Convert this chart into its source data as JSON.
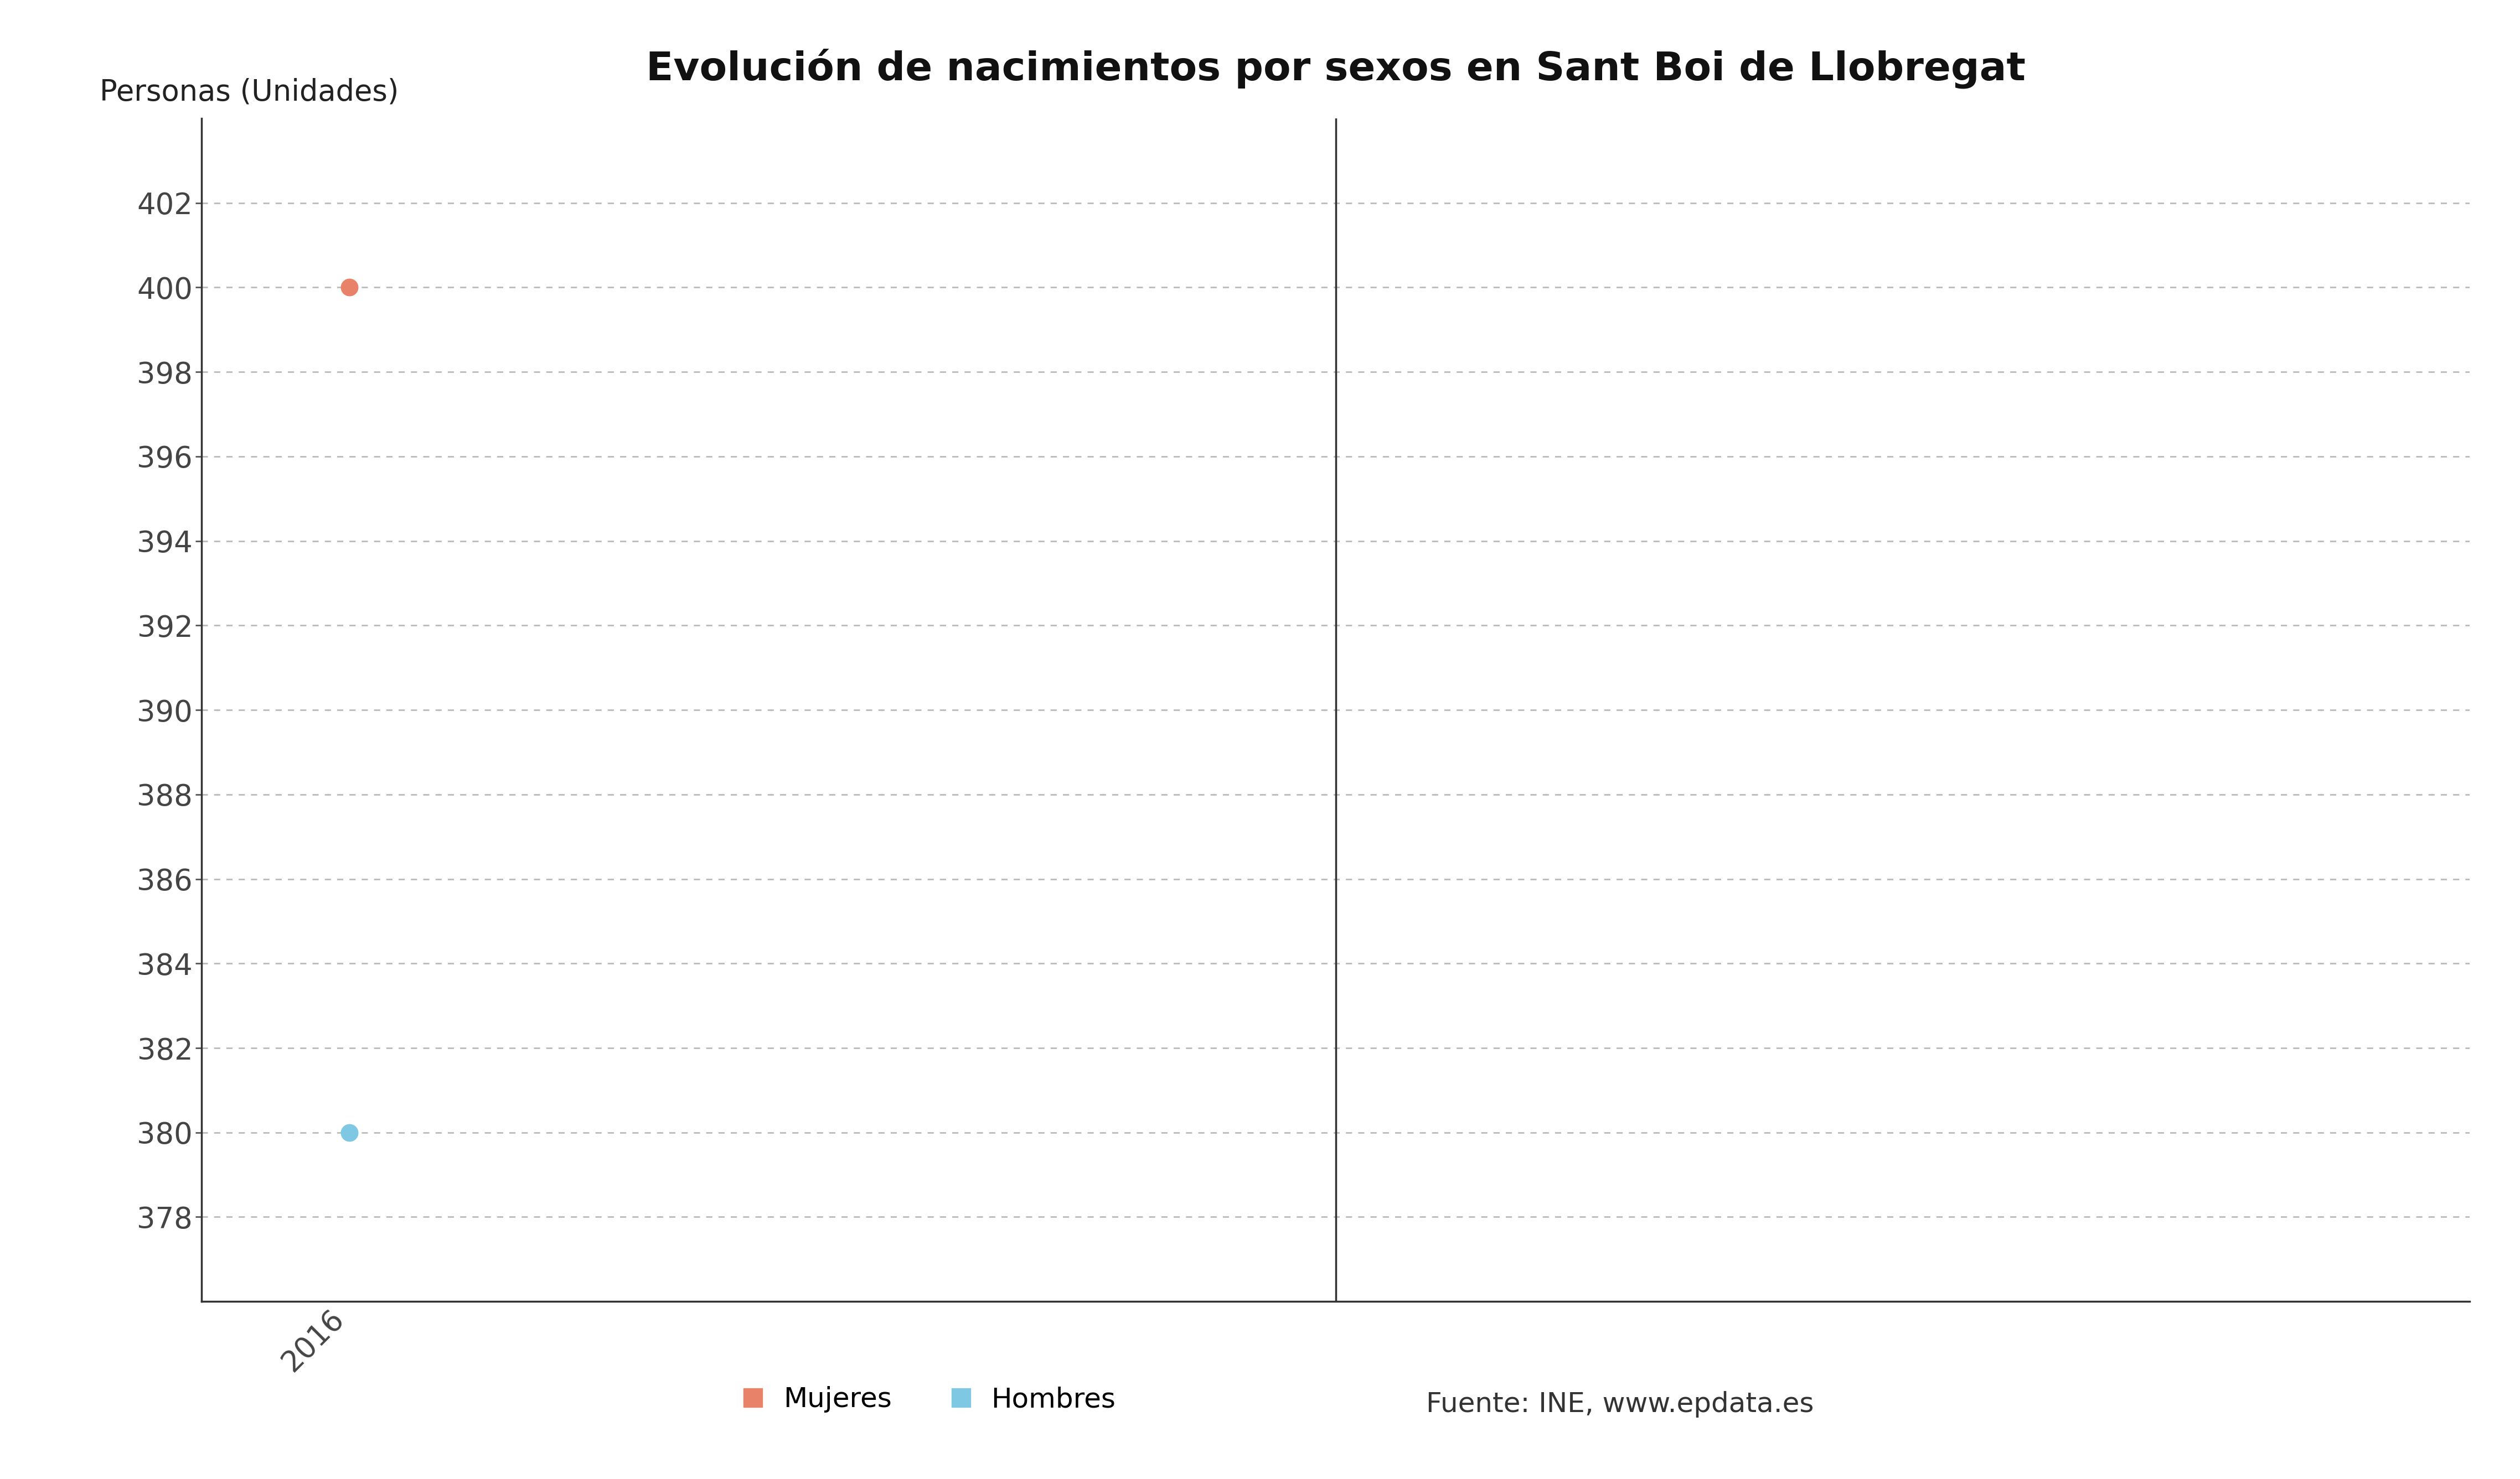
{
  "title": "Evolución de nacimientos por sexos en Sant Boi de Llobregat",
  "ylabel": "Personas (Unidades)",
  "years": [
    2016
  ],
  "mujeres": [
    400
  ],
  "hombres": [
    380
  ],
  "mujeres_color": "#E8836A",
  "hombres_color": "#7EC8E3",
  "ylim_min": 376,
  "ylim_max": 404,
  "ytick_min": 378,
  "ytick_max": 402,
  "ytick_step": 2,
  "xlim_min": 2015.85,
  "xlim_max": 2018.15,
  "grid_color": "#BBBBBB",
  "legend_mujeres": "Mujeres",
  "legend_hombres": "Hombres",
  "legend_source": "Fuente: INE, www.epdata.es",
  "background_color": "#FFFFFF",
  "title_fontsize": 52,
  "label_fontsize": 38,
  "tick_fontsize": 38,
  "legend_fontsize": 36,
  "marker_size": 22,
  "vertical_line_x": 2017.0,
  "spine_color": "#333333",
  "tick_color": "#555555",
  "text_color": "#444444"
}
